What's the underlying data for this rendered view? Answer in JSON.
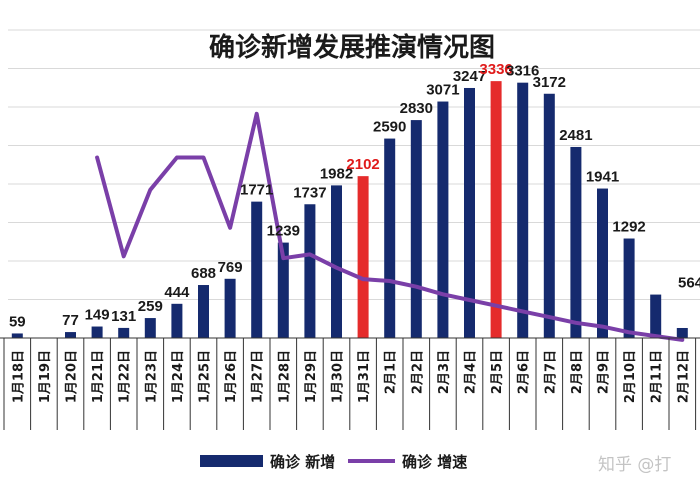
{
  "chart_data": {
    "type": "bar",
    "title": "确诊新增发展推演情况图",
    "categories": [
      "1月18日",
      "1月19日",
      "1月20日",
      "1月21日",
      "1月22日",
      "1月23日",
      "1月24日",
      "1月25日",
      "1月26日",
      "1月27日",
      "1月28日",
      "1月29日",
      "1月30日",
      "1月31日",
      "2月1日",
      "2月2日",
      "2月3日",
      "2月4日",
      "2月5日",
      "2月6日",
      "2月7日",
      "2月8日",
      "2月9日",
      "2月10日",
      "2月11日",
      "2月12日"
    ],
    "series": [
      {
        "name": "确诊 新增",
        "type": "bar",
        "color": "#152a6e",
        "highlight_color": "#e52b2b",
        "values": [
          59,
          0,
          77,
          149,
          131,
          259,
          444,
          688,
          769,
          1771,
          1239,
          1737,
          1982,
          2102,
          2590,
          2830,
          3071,
          3247,
          3336,
          3316,
          3172,
          2481,
          1941,
          1292,
          564,
          130
        ],
        "labels": [
          "59",
          "",
          "77",
          "149",
          "131",
          "259",
          "444",
          "688",
          "769",
          "1771",
          "1239",
          "1737",
          "1982",
          "2102",
          "2590",
          "2830",
          "3071",
          "3247",
          "3336",
          "3316",
          "3172",
          "2481",
          "1941",
          "1292",
          "564",
          ""
        ],
        "highlight_indices": [
          13,
          18
        ]
      },
      {
        "name": "确诊 增速",
        "type": "line",
        "color": "#7a3fa8",
        "values": [
          null,
          null,
          null,
          0.95,
          0.43,
          0.78,
          0.95,
          0.95,
          0.58,
          1.18,
          0.42,
          0.44,
          0.37,
          0.31,
          0.3,
          0.27,
          0.23,
          0.2,
          0.17,
          0.14,
          0.11,
          0.08,
          0.06,
          0.03,
          0.01,
          -0.01
        ]
      }
    ],
    "ylim": [
      0,
      4000
    ],
    "grid": true,
    "legend_position": "bottom-center"
  },
  "watermark": "知乎 @打"
}
